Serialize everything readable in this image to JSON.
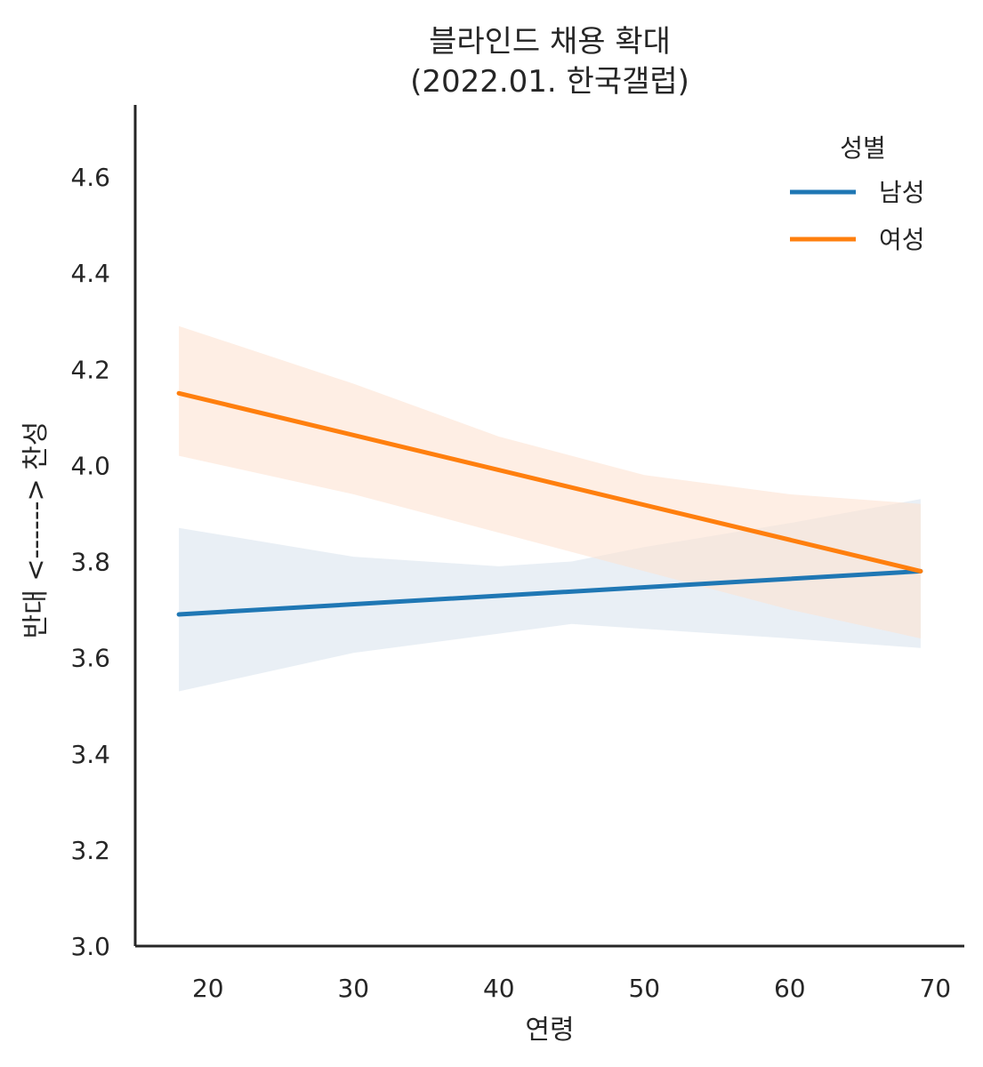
{
  "chart_data": {
    "type": "line",
    "title_line1": "블라인드 채용 확대",
    "title_line2": "(2022.01. 한국갤럽)",
    "xlabel": "연령",
    "ylabel": "반대 <------> 찬성",
    "xlim": [
      15,
      72
    ],
    "ylim": [
      3.0,
      4.75
    ],
    "xticks": [
      "20",
      "30",
      "40",
      "50",
      "60",
      "70"
    ],
    "yticks": [
      "3.0",
      "3.2",
      "3.4",
      "3.6",
      "3.8",
      "4.0",
      "4.2",
      "4.4",
      "4.6"
    ],
    "xtick_values": [
      20,
      30,
      40,
      50,
      60,
      70
    ],
    "ytick_values": [
      3.0,
      3.2,
      3.4,
      3.6,
      3.8,
      4.0,
      4.2,
      4.4,
      4.6
    ],
    "grid": false,
    "legend": {
      "title": "성별",
      "placement": "top-right"
    },
    "series": [
      {
        "name": "남성",
        "color": "#1f77b4",
        "band_color": "#dbe4ee",
        "x": [
          18,
          69
        ],
        "y": [
          3.69,
          3.78
        ],
        "ci_x": [
          18,
          30,
          40,
          45,
          50,
          60,
          69
        ],
        "ci_low": [
          3.53,
          3.61,
          3.65,
          3.67,
          3.66,
          3.64,
          3.62
        ],
        "ci_high": [
          3.87,
          3.81,
          3.79,
          3.8,
          3.83,
          3.88,
          3.93
        ]
      },
      {
        "name": "여성",
        "color": "#ff7f0e",
        "band_color": "#fde3d2",
        "x": [
          18,
          69
        ],
        "y": [
          4.15,
          3.78
        ],
        "ci_x": [
          18,
          30,
          40,
          50,
          60,
          69
        ],
        "ci_low": [
          4.02,
          3.94,
          3.86,
          3.78,
          3.7,
          3.64
        ],
        "ci_high": [
          4.29,
          4.17,
          4.06,
          3.98,
          3.94,
          3.92
        ]
      }
    ]
  }
}
